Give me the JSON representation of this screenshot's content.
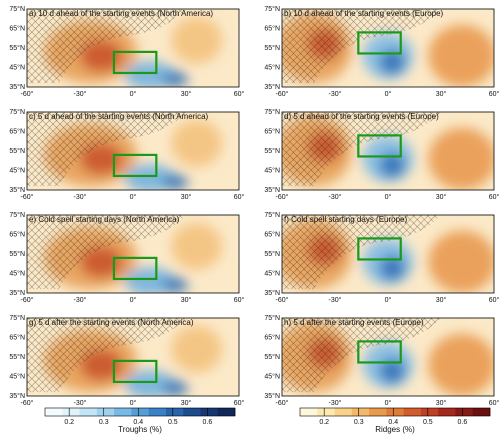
{
  "panels": [
    {
      "title": "a) 10 d ahead of the starting events (North America)"
    },
    {
      "title": "b) 10 d ahead of the starting events (Europe)"
    },
    {
      "title": "c) 5 d ahead of the starting events (North America)"
    },
    {
      "title": "d) 5 d ahead of the starting events (Europe)"
    },
    {
      "title": "e) Cold spell starting days (North America)"
    },
    {
      "title": "f) Cold spell starting days (Europe)"
    },
    {
      "title": "g) 5 d after the starting events (North America)"
    },
    {
      "title": "h) 5 d after the starting events (Europe)"
    }
  ],
  "lat_labels": [
    "75°N",
    "65°N",
    "55°N",
    "45°N",
    "35°N"
  ],
  "lon_labels": [
    "-60°",
    "-30°",
    "0°",
    "30°",
    "60°"
  ],
  "colorbars": [
    {
      "label": "Troughs (%)",
      "lim": [
        0.13,
        0.68
      ],
      "ticks": [
        0.2,
        0.3,
        0.4,
        0.5,
        0.6
      ],
      "colors": [
        "#f4fbff",
        "#e0f3fb",
        "#c3e6f7",
        "#a0d2f0",
        "#79b9e6",
        "#559fd8",
        "#3a82c6",
        "#2865ac",
        "#1d4c8f",
        "#173773",
        "#112659"
      ]
    },
    {
      "label": "Ridges (%)",
      "lim": [
        0.13,
        0.68
      ],
      "ticks": [
        0.2,
        0.3,
        0.4,
        0.5,
        0.6
      ],
      "colors": [
        "#fff7dc",
        "#fde9b0",
        "#f9d38a",
        "#f3b868",
        "#ea9a4c",
        "#e07b38",
        "#d25c2b",
        "#bf4023",
        "#a5291c",
        "#871a16",
        "#6b1010"
      ]
    }
  ]
}
